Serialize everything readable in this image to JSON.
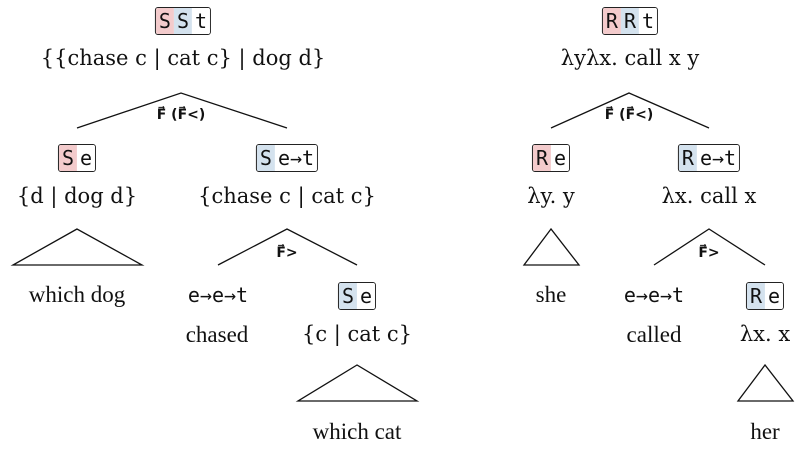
{
  "left_tree": {
    "root": {
      "tag": [
        {
          "t": "S",
          "c": "pink"
        },
        {
          "t": "S",
          "c": "blue"
        },
        {
          "t": "t",
          "c": "plain"
        }
      ],
      "term": "{{chase c | cat c} | dog d}"
    },
    "rule": "F⃗ (F⃗<)",
    "left_child": {
      "tag": [
        {
          "t": "S",
          "c": "pink"
        },
        {
          "t": "e",
          "c": "plain"
        }
      ],
      "term": "{d | dog d}",
      "words": "which dog"
    },
    "right_child": {
      "tag": [
        {
          "t": "S",
          "c": "blue"
        },
        {
          "t": "e→t",
          "c": "plain"
        }
      ],
      "term": "{chase c | cat c}",
      "rule": "F⃗>",
      "verb_type": "e→e→t",
      "verb_word": "chased",
      "object": {
        "tag": [
          {
            "t": "S",
            "c": "blue"
          },
          {
            "t": "e",
            "c": "plain"
          }
        ],
        "term": "{c | cat c}",
        "words": "which cat"
      }
    }
  },
  "right_tree": {
    "root": {
      "tag": [
        {
          "t": "R",
          "c": "pink"
        },
        {
          "t": "R",
          "c": "blue"
        },
        {
          "t": "t",
          "c": "plain"
        }
      ],
      "term": "λyλx. call x y"
    },
    "rule": "F⃗ (F⃗<)",
    "left_child": {
      "tag": [
        {
          "t": "R",
          "c": "pink"
        },
        {
          "t": "e",
          "c": "plain"
        }
      ],
      "term": "λy. y",
      "words": "she"
    },
    "right_child": {
      "tag": [
        {
          "t": "R",
          "c": "blue"
        },
        {
          "t": "e→t",
          "c": "plain"
        }
      ],
      "term": "λx. call x",
      "rule": "F⃗>",
      "verb_type": "e→e→t",
      "verb_word": "called",
      "object": {
        "tag": [
          {
            "t": "R",
            "c": "blue"
          },
          {
            "t": "e",
            "c": "plain"
          }
        ],
        "term": "λx. x",
        "words": "her"
      }
    }
  }
}
